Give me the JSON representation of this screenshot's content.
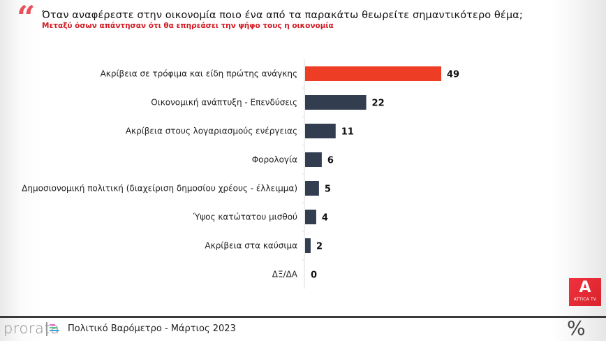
{
  "header": {
    "quote_glyph": "“",
    "title": "Όταν αναφέρεστε στην οικονομία ποιο ένα από τα παρακάτω θεωρείτε σημαντικότερο θέμα;",
    "subtitle": "Μεταξύ όσων απάντησαν ότι θα επηρεάσει την ψήφο τους η οικονομία"
  },
  "colors": {
    "highlight": "#ee3d25",
    "default_bar": "#323e50",
    "accent_red": "#d11a22"
  },
  "chart_data": {
    "type": "bar",
    "orientation": "horizontal",
    "title": "Όταν αναφέρεστε στην οικονομία ποιο ένα από τα παρακάτω θεωρείτε σημαντικότερο θέμα;",
    "subtitle": "Μεταξύ όσων απάντησαν ότι θα επηρεάσει την ψήφο τους η οικονομία",
    "xlabel": "",
    "ylabel": "",
    "unit": "%",
    "xlim": [
      0,
      50
    ],
    "grid": false,
    "legend": "none",
    "categories": [
      "Ακρίβεια σε τρόφιμα και είδη πρώτης ανάγκης",
      "Οικονομική ανάπτυξη - Επενδύσεις",
      "Ακρίβεια στους λογαριασμούς ενέργειας",
      "Φορολογία",
      "Δημοσιονομική πολιτική (διαχείριση δημοσίου χρέους - έλλειμμα)",
      "Ύψος κατώτατου μισθού",
      "Ακρίβεια στα καύσιμα",
      "ΔΞ/ΔΑ"
    ],
    "values": [
      49,
      22,
      11,
      6,
      5,
      4,
      2,
      0
    ],
    "highlight_index": 0
  },
  "logo": {
    "letter": "A",
    "name": "ATTICA TV"
  },
  "footer": {
    "brand": "prorata",
    "text": "Πολιτικό Βαρόμετρο - Μάρτιος 2023",
    "percent_symbol": "%"
  }
}
